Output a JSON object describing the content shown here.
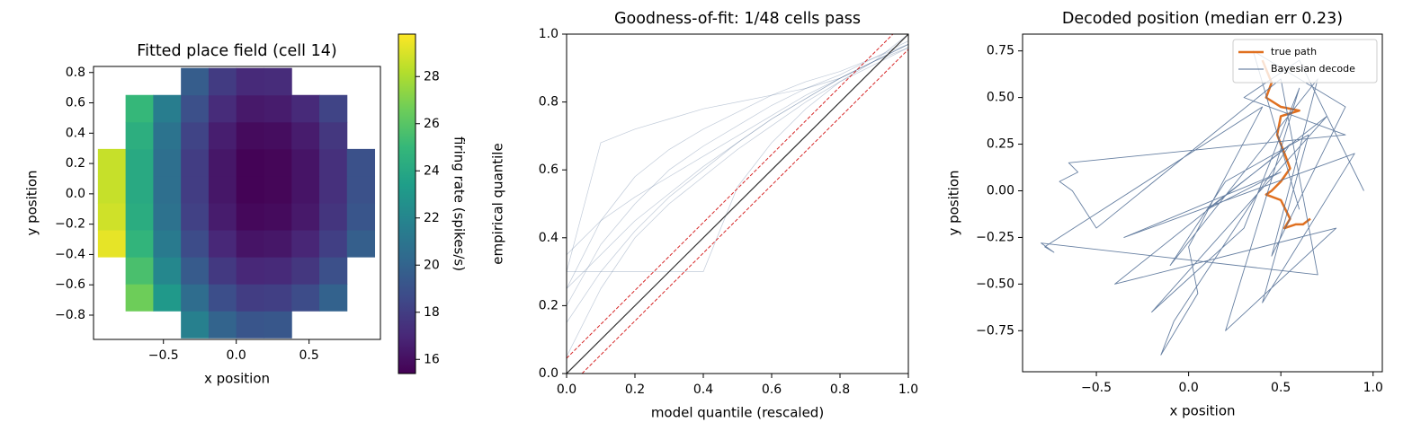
{
  "chart_data": [
    {
      "type": "heatmap",
      "title": "Fitted place field (cell 14)",
      "xlabel": "x position",
      "ylabel": "y position",
      "colorbar_label": "firing rate (spikes/s)",
      "colormap": "viridis",
      "xlim": [
        -0.98,
        0.99
      ],
      "ylim": [
        -0.96,
        0.84
      ],
      "clim": [
        15.4,
        29.8
      ],
      "xticks": [
        {
          "value": -0.5,
          "label": "−0.5"
        },
        {
          "value": 0,
          "label": "0.0"
        },
        0.5
      ],
      "yticks": [
        {
          "value": -0.8,
          "label": "−0.8"
        },
        {
          "value": -0.6,
          "label": "−0.6"
        },
        {
          "value": -0.4,
          "label": "−0.4"
        },
        {
          "value": -0.2,
          "label": "−0.2"
        },
        {
          "value": 0,
          "label": "0.0"
        },
        0.2,
        0.4,
        0.6,
        0.8
      ],
      "cticks": [
        16,
        18,
        20,
        22,
        24,
        26,
        28
      ],
      "x_edges": [
        -0.95,
        -0.76,
        -0.57,
        -0.38,
        -0.19,
        0,
        0.19,
        0.38,
        0.57,
        0.76,
        0.95
      ],
      "y_edges": [
        -0.95,
        -0.772,
        -0.594,
        -0.416,
        -0.238,
        -0.06,
        0.118,
        0.296,
        0.474,
        0.652,
        0.83
      ],
      "values": [
        [
          null,
          null,
          null,
          21.7,
          20.0,
          19.2,
          19.3,
          null,
          null,
          null
        ],
        [
          null,
          26.6,
          23.1,
          20.5,
          18.8,
          18.0,
          18.1,
          18.7,
          19.9,
          null
        ],
        [
          null,
          25.6,
          22.1,
          19.5,
          17.8,
          17.0,
          17.1,
          17.7,
          18.9,
          null
        ],
        [
          29.3,
          24.8,
          21.3,
          18.7,
          17.0,
          16.2,
          16.3,
          16.9,
          18.1,
          19.7
        ],
        [
          28.8,
          24.3,
          20.8,
          18.2,
          16.5,
          15.7,
          15.8,
          16.4,
          17.6,
          19.2
        ],
        [
          28.6,
          24.1,
          20.6,
          18.0,
          16.3,
          15.5,
          15.6,
          16.2,
          17.4,
          19.0
        ],
        [
          28.6,
          24.1,
          20.6,
          18.0,
          16.3,
          15.5,
          15.6,
          16.2,
          17.4,
          19.0
        ],
        [
          null,
          24.4,
          20.9,
          18.3,
          16.6,
          15.8,
          15.9,
          16.5,
          17.7,
          null
        ],
        [
          null,
          25.0,
          21.5,
          18.9,
          17.2,
          16.4,
          16.5,
          17.1,
          18.3,
          null
        ],
        [
          null,
          null,
          null,
          19.6,
          17.9,
          17.1,
          17.2,
          null,
          null,
          null
        ]
      ]
    },
    {
      "type": "line",
      "title": "Goodness-of-fit: 1/48 cells pass",
      "xlabel": "model quantile (rescaled)",
      "ylabel": "empirical quantile",
      "xlim": [
        0,
        1
      ],
      "ylim": [
        0,
        1
      ],
      "xticks": [
        {
          "value": 0,
          "label": "0.0"
        },
        0.2,
        0.4,
        0.6,
        0.8,
        {
          "value": 1,
          "label": "1.0"
        }
      ],
      "yticks": [
        {
          "value": 0,
          "label": "0.0"
        },
        0.2,
        0.4,
        0.6,
        0.8,
        {
          "value": 1,
          "label": "1.0"
        }
      ],
      "x": [
        0,
        0.1,
        0.2,
        0.3,
        0.4,
        0.5,
        0.6,
        0.7,
        0.8,
        0.9,
        1.0
      ],
      "series": [
        {
          "color": "#4c6a92",
          "opacity": 0.35,
          "linewidth": 0.7,
          "values": [
            0.3,
            0.68,
            0.72,
            0.75,
            0.78,
            0.8,
            0.82,
            0.84,
            0.87,
            0.92,
            1.0
          ]
        },
        {
          "color": "#4c6a92",
          "opacity": 0.35,
          "linewidth": 0.7,
          "values": [
            0.25,
            0.45,
            0.58,
            0.66,
            0.72,
            0.77,
            0.82,
            0.86,
            0.89,
            0.93,
            0.98
          ]
        },
        {
          "color": "#4c6a92",
          "opacity": 0.35,
          "linewidth": 0.7,
          "values": [
            0.2,
            0.38,
            0.5,
            0.6,
            0.67,
            0.73,
            0.79,
            0.84,
            0.88,
            0.93,
            0.97
          ]
        },
        {
          "color": "#4c6a92",
          "opacity": 0.35,
          "linewidth": 0.7,
          "values": [
            0.15,
            0.3,
            0.42,
            0.52,
            0.6,
            0.68,
            0.75,
            0.81,
            0.87,
            0.92,
            0.97
          ]
        },
        {
          "color": "#4c6a92",
          "opacity": 0.35,
          "linewidth": 0.7,
          "values": [
            0.35,
            0.45,
            0.52,
            0.58,
            0.64,
            0.7,
            0.76,
            0.82,
            0.87,
            0.92,
            0.97
          ]
        },
        {
          "color": "#4c6a92",
          "opacity": 0.35,
          "linewidth": 0.7,
          "values": [
            0.3,
            0.3,
            0.3,
            0.3,
            0.3,
            0.55,
            0.68,
            0.78,
            0.86,
            0.92,
            0.96
          ]
        },
        {
          "color": "#4c6a92",
          "opacity": 0.35,
          "linewidth": 0.7,
          "values": [
            0.05,
            0.25,
            0.4,
            0.5,
            0.58,
            0.66,
            0.73,
            0.8,
            0.86,
            0.91,
            0.96
          ]
        },
        {
          "color": "#4c6a92",
          "opacity": 0.35,
          "linewidth": 0.7,
          "values": [
            0.25,
            0.35,
            0.45,
            0.53,
            0.61,
            0.68,
            0.75,
            0.81,
            0.87,
            0.92,
            0.97
          ]
        },
        {
          "color": "#333333",
          "opacity": 1,
          "linewidth": 1.2,
          "x": [
            0,
            1
          ],
          "values": [
            0,
            1
          ]
        },
        {
          "color": "#d62728",
          "opacity": 1,
          "linewidth": 1,
          "dashed": true,
          "x": [
            0,
            1
          ],
          "values": [
            0.045,
            1.045
          ]
        },
        {
          "color": "#d62728",
          "opacity": 1,
          "linewidth": 1,
          "dashed": true,
          "x": [
            0.045,
            1
          ],
          "values": [
            0,
            0.955
          ]
        }
      ]
    },
    {
      "type": "line",
      "title": "Decoded position (median err 0.23)",
      "xlabel": "x position",
      "ylabel": "y position",
      "xlim": [
        -0.9,
        1.05
      ],
      "ylim": [
        -0.97,
        0.84
      ],
      "legend": "upper right",
      "xticks": [
        {
          "value": -0.5,
          "label": "−0.5"
        },
        {
          "value": 0,
          "label": "0.0"
        },
        0.5,
        {
          "value": 1,
          "label": "1.0"
        }
      ],
      "yticks": [
        {
          "value": -0.75,
          "label": "−0.75"
        },
        {
          "value": -0.5,
          "label": "−0.50"
        },
        {
          "value": -0.25,
          "label": "−0.25"
        },
        {
          "value": 0,
          "label": "0.00"
        },
        0.25,
        {
          "value": 0.5,
          "label": "0.50"
        },
        0.75
      ],
      "series": [
        {
          "name": "true path",
          "color": "#e07020",
          "opacity": 1,
          "linewidth": 2.5,
          "x": [
            0.4,
            0.45,
            0.42,
            0.5,
            0.6,
            0.5,
            0.48,
            0.52,
            0.55,
            0.5,
            0.45,
            0.42,
            0.5,
            0.55,
            0.52,
            0.58,
            0.62,
            0.66
          ],
          "values": [
            0.7,
            0.58,
            0.5,
            0.45,
            0.43,
            0.4,
            0.3,
            0.2,
            0.12,
            0.05,
            0.0,
            -0.02,
            -0.05,
            -0.15,
            -0.2,
            -0.18,
            -0.18,
            -0.15
          ]
        },
        {
          "name": "Bayesian decode",
          "color": "#4c6a92",
          "opacity": 0.85,
          "linewidth": 0.9,
          "x": [
            0.95,
            0.6,
            0.3,
            0.85,
            -0.65,
            -0.6,
            -0.7,
            -0.63,
            -0.5,
            0.5,
            0.7,
            -0.8,
            -0.73,
            -0.78,
            0.4,
            0.0,
            0.05,
            -0.15,
            -0.08,
            0.55,
            -0.4,
            0.8,
            0.2,
            0.6,
            0.3,
            -0.2,
            0.75,
            0.1,
            0.5,
            -0.35,
            0.9,
            0.4,
            0.65,
            0.2,
            -0.1,
            0.7,
            0.45,
            0.85,
            0.35,
            0.6
          ],
          "values": [
            0.0,
            0.7,
            0.5,
            0.3,
            0.15,
            0.1,
            0.05,
            0.0,
            -0.2,
            0.6,
            -0.45,
            -0.28,
            -0.33,
            -0.3,
            0.45,
            -0.3,
            -0.55,
            -0.88,
            -0.7,
            0.25,
            -0.5,
            -0.2,
            -0.75,
            0.55,
            -0.2,
            -0.65,
            0.4,
            -0.1,
            0.1,
            -0.25,
            0.2,
            -0.6,
            0.3,
            0.05,
            -0.4,
            0.6,
            -0.35,
            0.45,
            0.75,
            -0.1
          ]
        }
      ]
    }
  ]
}
